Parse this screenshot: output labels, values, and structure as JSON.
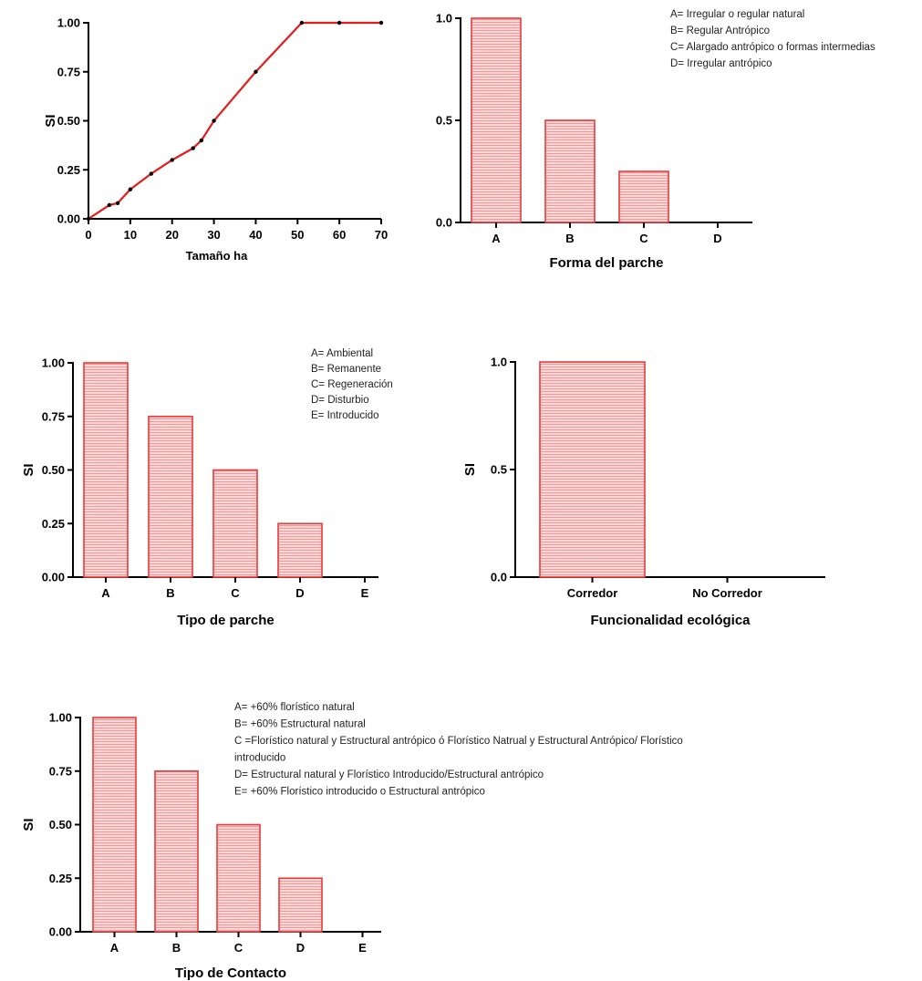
{
  "colors": {
    "bar_stroke": "#e83b3b",
    "bar_fill": "#f6b3b3",
    "line": "#e51c1c",
    "axis": "#000000"
  },
  "chart_data": [
    {
      "id": "c1",
      "type": "line",
      "xlabel": "Tamaño  ha",
      "ylabel": "SI",
      "xlim": [
        0,
        70
      ],
      "ylim": [
        0,
        1
      ],
      "xticks": [
        "0",
        "10",
        "20",
        "30",
        "40",
        "50",
        "60",
        "70"
      ],
      "yticks": [
        "0.00",
        "0.25",
        "0.50",
        "0.75",
        "1.00"
      ],
      "x": [
        0,
        5,
        7,
        10,
        15,
        20,
        25,
        27,
        30,
        40,
        51,
        60,
        70
      ],
      "y": [
        0,
        0.07,
        0.08,
        0.15,
        0.23,
        0.3,
        0.36,
        0.4,
        0.5,
        0.75,
        1.0,
        1.0,
        1.0
      ],
      "legend": []
    },
    {
      "id": "c2",
      "type": "bar",
      "xlabel": "Forma del parche",
      "ylabel": "",
      "ylim": [
        0,
        1
      ],
      "yticks": [
        "0.0",
        "0.5",
        "1.0"
      ],
      "categories": [
        "A",
        "B",
        "C",
        "D"
      ],
      "values": [
        1.0,
        0.5,
        0.25,
        0
      ],
      "legend": [
        "A= Irregular o regular natural",
        "B= Regular Antrópico",
        "C= Alargado antrópico o formas intermedias",
        "D= Irregular antrópico"
      ]
    },
    {
      "id": "c3",
      "type": "bar",
      "xlabel": "Tipo de parche",
      "ylabel": "SI",
      "ylim": [
        0,
        1
      ],
      "yticks": [
        "0.00",
        "0.25",
        "0.50",
        "0.75",
        "1.00"
      ],
      "categories": [
        "A",
        "B",
        "C",
        "D",
        "E"
      ],
      "values": [
        1.0,
        0.75,
        0.5,
        0.25,
        0
      ],
      "legend": [
        "A= Ambiental",
        "B= Remanente",
        "C= Regeneración",
        "D= Disturbio",
        "E= Introducido"
      ]
    },
    {
      "id": "c4",
      "type": "bar",
      "xlabel": "Funcionalidad ecológica",
      "ylabel": "SI",
      "ylim": [
        0,
        1
      ],
      "yticks": [
        "0.0",
        "0.5",
        "1.0"
      ],
      "categories": [
        "Corredor",
        "No Corredor"
      ],
      "values": [
        1.0,
        0
      ],
      "legend": []
    },
    {
      "id": "c5",
      "type": "bar",
      "xlabel": "Tipo de Contacto",
      "ylabel": "SI",
      "ylim": [
        0,
        1
      ],
      "yticks": [
        "0.00",
        "0.25",
        "0.50",
        "0.75",
        "1.00"
      ],
      "categories": [
        "A",
        "B",
        "C",
        "D",
        "E"
      ],
      "values": [
        1.0,
        0.75,
        0.5,
        0.25,
        0
      ],
      "legend": [
        "A= +60% florístico natural",
        "B= +60% Estructural natural",
        "C =Florístico natural y Estructural antrópico ó Florístico Natrual y Estructural Antrópico/ Florístico",
        "introducido",
        "D= Estructural natural y Florístico Introducido/Estructural antrópico",
        "E= +60% Florístico introducido o Estructural antrópico"
      ]
    }
  ]
}
